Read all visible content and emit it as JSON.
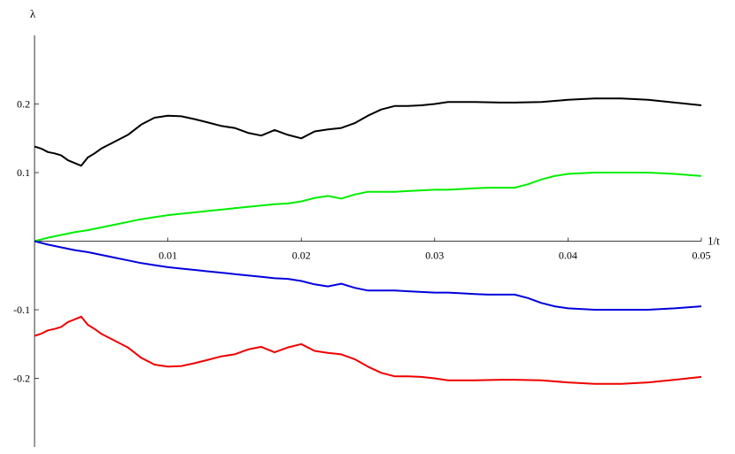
{
  "chart_data": {
    "type": "line",
    "title": "",
    "xlabel": "1/t",
    "ylabel": "λ",
    "xlim": [
      0,
      0.05
    ],
    "ylim": [
      -0.3,
      0.3
    ],
    "grid": false,
    "x_ticks": [
      0.01,
      0.02,
      0.03,
      0.04,
      0.05
    ],
    "x_tick_labels": [
      "0.01",
      "0.02",
      "0.03",
      "0.04",
      "0.05"
    ],
    "y_ticks": [
      0.2,
      0.1,
      -0.1,
      -0.2
    ],
    "y_tick_labels": [
      "0.2",
      "0.1",
      "-0.1",
      "-0.2"
    ],
    "series": [
      {
        "color": "#000000",
        "x": [
          0,
          0.0005,
          0.001,
          0.0015,
          0.002,
          0.0025,
          0.003,
          0.0035,
          0.004,
          0.0045,
          0.005,
          0.006,
          0.007,
          0.008,
          0.009,
          0.01,
          0.011,
          0.012,
          0.013,
          0.014,
          0.015,
          0.016,
          0.017,
          0.018,
          0.019,
          0.02,
          0.021,
          0.022,
          0.023,
          0.024,
          0.025,
          0.026,
          0.027,
          0.028,
          0.029,
          0.03,
          0.031,
          0.033,
          0.035,
          0.036,
          0.038,
          0.04,
          0.042,
          0.044,
          0.046,
          0.048,
          0.05
        ],
        "y": [
          0.138,
          0.135,
          0.13,
          0.128,
          0.125,
          0.118,
          0.114,
          0.11,
          0.122,
          0.128,
          0.135,
          0.145,
          0.155,
          0.17,
          0.18,
          0.183,
          0.182,
          0.178,
          0.173,
          0.168,
          0.165,
          0.158,
          0.154,
          0.162,
          0.155,
          0.15,
          0.16,
          0.163,
          0.165,
          0.172,
          0.183,
          0.192,
          0.197,
          0.197,
          0.198,
          0.2,
          0.203,
          0.203,
          0.202,
          0.202,
          0.203,
          0.206,
          0.208,
          0.208,
          0.206,
          0.202,
          0.198
        ]
      },
      {
        "color": "#00ee00",
        "x": [
          0,
          0.001,
          0.002,
          0.003,
          0.004,
          0.005,
          0.006,
          0.007,
          0.008,
          0.009,
          0.01,
          0.011,
          0.012,
          0.013,
          0.014,
          0.015,
          0.016,
          0.017,
          0.018,
          0.019,
          0.02,
          0.021,
          0.022,
          0.023,
          0.024,
          0.025,
          0.026,
          0.027,
          0.028,
          0.029,
          0.03,
          0.031,
          0.032,
          0.033,
          0.034,
          0.035,
          0.036,
          0.037,
          0.038,
          0.039,
          0.04,
          0.042,
          0.044,
          0.046,
          0.048,
          0.05
        ],
        "y": [
          0.0,
          0.005,
          0.009,
          0.013,
          0.016,
          0.02,
          0.024,
          0.028,
          0.032,
          0.035,
          0.038,
          0.04,
          0.042,
          0.044,
          0.046,
          0.048,
          0.05,
          0.052,
          0.054,
          0.055,
          0.058,
          0.063,
          0.066,
          0.062,
          0.068,
          0.072,
          0.072,
          0.072,
          0.073,
          0.074,
          0.075,
          0.075,
          0.076,
          0.077,
          0.078,
          0.078,
          0.078,
          0.083,
          0.09,
          0.095,
          0.098,
          0.1,
          0.1,
          0.1,
          0.098,
          0.095
        ]
      },
      {
        "color": "#0000dd",
        "x": [
          0,
          0.001,
          0.002,
          0.003,
          0.004,
          0.005,
          0.006,
          0.007,
          0.008,
          0.009,
          0.01,
          0.011,
          0.012,
          0.013,
          0.014,
          0.015,
          0.016,
          0.017,
          0.018,
          0.019,
          0.02,
          0.021,
          0.022,
          0.023,
          0.024,
          0.025,
          0.026,
          0.027,
          0.028,
          0.029,
          0.03,
          0.031,
          0.032,
          0.033,
          0.034,
          0.035,
          0.036,
          0.037,
          0.038,
          0.039,
          0.04,
          0.042,
          0.044,
          0.046,
          0.048,
          0.05
        ],
        "y": [
          0.0,
          -0.005,
          -0.009,
          -0.013,
          -0.016,
          -0.02,
          -0.024,
          -0.028,
          -0.032,
          -0.035,
          -0.038,
          -0.04,
          -0.042,
          -0.044,
          -0.046,
          -0.048,
          -0.05,
          -0.052,
          -0.054,
          -0.055,
          -0.058,
          -0.063,
          -0.066,
          -0.062,
          -0.068,
          -0.072,
          -0.072,
          -0.072,
          -0.073,
          -0.074,
          -0.075,
          -0.075,
          -0.076,
          -0.077,
          -0.078,
          -0.078,
          -0.078,
          -0.083,
          -0.09,
          -0.095,
          -0.098,
          -0.1,
          -0.1,
          -0.1,
          -0.098,
          -0.095
        ]
      },
      {
        "color": "#ee0000",
        "x": [
          0,
          0.0005,
          0.001,
          0.0015,
          0.002,
          0.0025,
          0.003,
          0.0035,
          0.004,
          0.0045,
          0.005,
          0.006,
          0.007,
          0.008,
          0.009,
          0.01,
          0.011,
          0.012,
          0.013,
          0.014,
          0.015,
          0.016,
          0.017,
          0.018,
          0.019,
          0.02,
          0.021,
          0.022,
          0.023,
          0.024,
          0.025,
          0.026,
          0.027,
          0.028,
          0.029,
          0.03,
          0.031,
          0.033,
          0.035,
          0.036,
          0.038,
          0.04,
          0.042,
          0.044,
          0.046,
          0.048,
          0.05
        ],
        "y": [
          -0.138,
          -0.135,
          -0.13,
          -0.128,
          -0.125,
          -0.118,
          -0.114,
          -0.11,
          -0.122,
          -0.128,
          -0.135,
          -0.145,
          -0.155,
          -0.17,
          -0.18,
          -0.183,
          -0.182,
          -0.178,
          -0.173,
          -0.168,
          -0.165,
          -0.158,
          -0.154,
          -0.162,
          -0.155,
          -0.15,
          -0.16,
          -0.163,
          -0.165,
          -0.172,
          -0.183,
          -0.192,
          -0.197,
          -0.197,
          -0.198,
          -0.2,
          -0.203,
          -0.203,
          -0.202,
          -0.202,
          -0.203,
          -0.206,
          -0.208,
          -0.208,
          -0.206,
          -0.202,
          -0.198
        ]
      }
    ]
  }
}
